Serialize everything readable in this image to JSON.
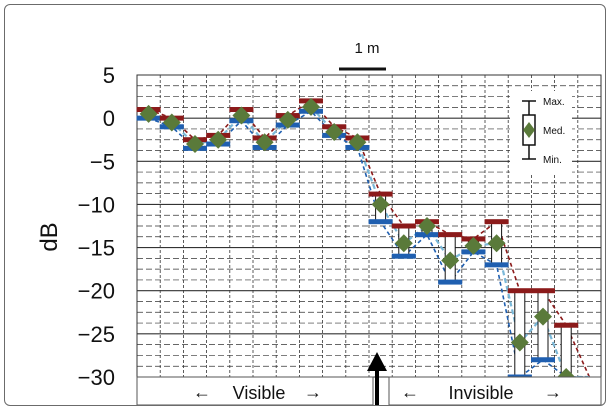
{
  "chart_data": {
    "type": "line",
    "title": "",
    "xlabel": "",
    "ylabel": "dB",
    "ylim": [
      -30,
      5
    ],
    "yticks": [
      5,
      0,
      -5,
      -10,
      -15,
      -20,
      -25,
      -30
    ],
    "ytick_labels": [
      "5",
      "0",
      "−5",
      "−10",
      "−15",
      "−20",
      "−25",
      "−30"
    ],
    "grid": true,
    "scale_bar_label": "1 m",
    "x": [
      1,
      2,
      3,
      4,
      5,
      6,
      7,
      8,
      9,
      10,
      11,
      12,
      13,
      14,
      15,
      16,
      17,
      18,
      19,
      20
    ],
    "series": [
      {
        "name": "Max.",
        "color": "#8b1a1a",
        "values": [
          1,
          0,
          -2.5,
          -2,
          1,
          -2.3,
          0.3,
          2,
          -1,
          -2.3,
          -8.8,
          -12.5,
          -12,
          -13.5,
          -14,
          -12,
          -20,
          -20,
          -24,
          -31
        ]
      },
      {
        "name": "Med.",
        "color": "#5a7a3a",
        "values": [
          0.5,
          -0.5,
          -3,
          -2.5,
          0.3,
          -2.8,
          -0.2,
          1.3,
          -1.6,
          -2.8,
          -10,
          -14.5,
          -12.5,
          -16.5,
          -14.8,
          -14.5,
          -26,
          -23,
          -30,
          -31
        ]
      },
      {
        "name": "Min.",
        "color": "#1f5fb0",
        "values": [
          0,
          -1,
          -3.5,
          -3,
          -0.3,
          -3.4,
          -0.8,
          0.8,
          -2,
          -3.4,
          -12,
          -16,
          -13.5,
          -19,
          -15.5,
          -17,
          -30,
          -28,
          -31,
          -31
        ]
      }
    ],
    "legend": {
      "position": "top-right",
      "labels": [
        "Max.",
        "Med.",
        "Min."
      ]
    },
    "regions": [
      {
        "label": "Visible",
        "arrows": [
          "←",
          "→"
        ]
      },
      {
        "label": "Invisible",
        "arrows": [
          "←",
          "→"
        ]
      }
    ],
    "colors": {
      "grid": "#333333",
      "max": "#8b1a1a",
      "med_marker": "#5a7a3a",
      "min": "#1f5fb0",
      "mean_line": "#7ab8d8"
    }
  }
}
